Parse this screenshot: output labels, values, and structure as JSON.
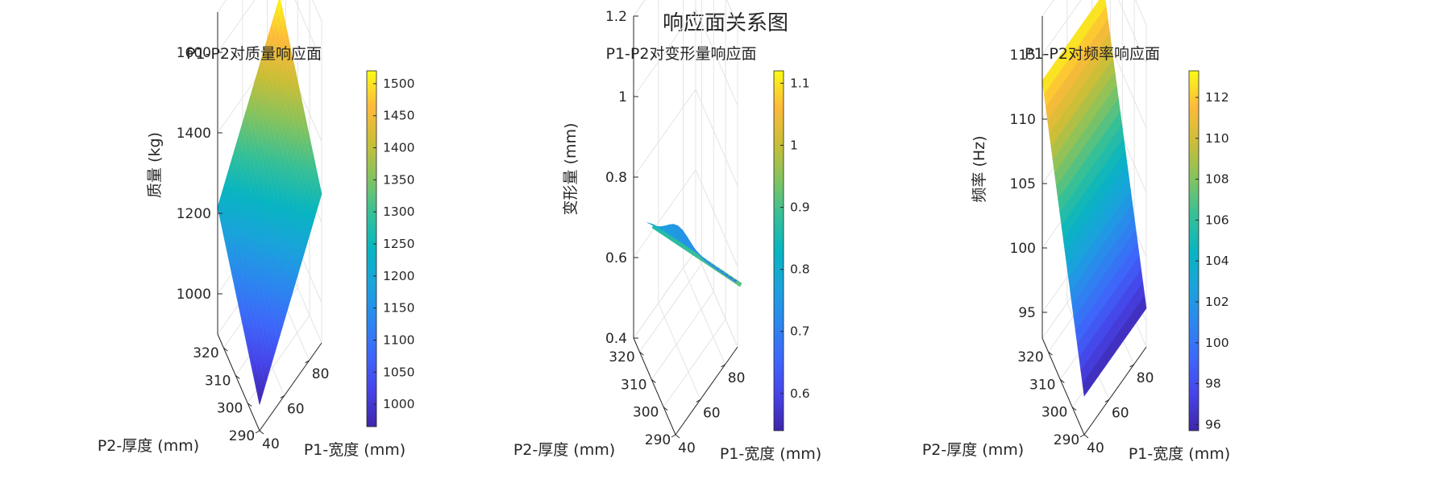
{
  "figure": {
    "title": "响应面关系图"
  },
  "chart_data": [
    {
      "type": "surface",
      "title": "P1-P2对质量响应面",
      "xlabel": "P1-宽度 (mm)",
      "ylabel": "P2-厚度 (mm)",
      "zlabel": "质量 (kg)",
      "xlim": [
        40,
        90
      ],
      "ylim": [
        290,
        325
      ],
      "zlim": [
        900,
        1700
      ],
      "xticks": [
        40,
        60,
        80
      ],
      "yticks": [
        290,
        300,
        310,
        320
      ],
      "zticks": [
        1000,
        1200,
        1400,
        1600
      ],
      "colorbar": {
        "ticks": [
          1000,
          1050,
          1100,
          1150,
          1200,
          1250,
          1300,
          1350,
          1400,
          1450,
          1500
        ],
        "range": [
          965,
          1520
        ]
      },
      "surface": {
        "x": [
          40,
          90
        ],
        "y": [
          290,
          325
        ],
        "z": [
          [
            965,
            1270
          ],
          [
            1215,
            1520
          ]
        ]
      }
    },
    {
      "type": "surface",
      "title": "P1-P2对变形量响应面",
      "xlabel": "P1-宽度 (mm)",
      "ylabel": "P2-厚度 (mm)",
      "zlabel": "变形量 (mm)",
      "xlim": [
        40,
        90
      ],
      "ylim": [
        290,
        325
      ],
      "zlim": [
        0.4,
        1.2
      ],
      "xticks": [
        40,
        60,
        80
      ],
      "yticks": [
        290,
        300,
        310,
        320
      ],
      "zticks": [
        0.4,
        0.6,
        0.8,
        1,
        1.2
      ],
      "colorbar": {
        "ticks": [
          0.6,
          0.7,
          0.8,
          0.9,
          1,
          1.1
        ],
        "range": [
          0.54,
          1.12
        ]
      }
    },
    {
      "type": "surface",
      "title": "P1-P2对频率响应面",
      "xlabel": "P1-宽度 (mm)",
      "ylabel": "P2-厚度 (mm)",
      "zlabel": "频率 (Hz)",
      "xlim": [
        40,
        90
      ],
      "ylim": [
        290,
        325
      ],
      "zlim": [
        93,
        118
      ],
      "xticks": [
        40,
        60,
        80
      ],
      "yticks": [
        290,
        300,
        310,
        320
      ],
      "zticks": [
        95,
        100,
        105,
        110,
        115
      ],
      "colorbar": {
        "ticks": [
          96,
          98,
          100,
          102,
          104,
          106,
          108,
          110,
          112
        ],
        "range": [
          95.7,
          113.3
        ]
      },
      "surface": {
        "x": [
          40,
          90
        ],
        "y": [
          290,
          325
        ],
        "z": [
          [
            96,
            96
          ],
          [
            113,
            113
          ]
        ]
      }
    }
  ]
}
